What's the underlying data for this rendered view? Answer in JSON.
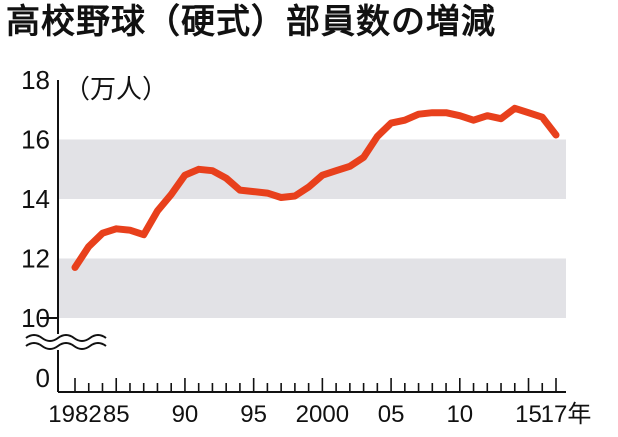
{
  "chart_data": {
    "type": "line",
    "title": "高校野球（硬式）部員数の増減",
    "y_unit_label": "（万人）",
    "x_unit_suffix": "年",
    "ylim": [
      10,
      18
    ],
    "y_ticks": [
      {
        "value": 18,
        "label": "18"
      },
      {
        "value": 16,
        "label": "16"
      },
      {
        "value": 14,
        "label": "14"
      },
      {
        "value": 12,
        "label": "12"
      },
      {
        "value": 10,
        "label": "10"
      },
      {
        "value": 0,
        "label": "0"
      }
    ],
    "axis_break": true,
    "bands": [
      [
        10,
        12
      ],
      [
        14,
        16
      ]
    ],
    "x_tick_labels": [
      {
        "year": 1982,
        "label": "1982"
      },
      {
        "year": 1985,
        "label": "85"
      },
      {
        "year": 1990,
        "label": "90"
      },
      {
        "year": 1995,
        "label": "95"
      },
      {
        "year": 2000,
        "label": "2000"
      },
      {
        "year": 2005,
        "label": "05"
      },
      {
        "year": 2010,
        "label": "10"
      },
      {
        "year": 2015,
        "label": "15"
      },
      {
        "year": 2017,
        "label": "17"
      }
    ],
    "x": [
      1982,
      1983,
      1984,
      1985,
      1986,
      1987,
      1988,
      1989,
      1990,
      1991,
      1992,
      1993,
      1994,
      1995,
      1996,
      1997,
      1998,
      1999,
      2000,
      2001,
      2002,
      2003,
      2004,
      2005,
      2006,
      2007,
      2008,
      2009,
      2010,
      2011,
      2012,
      2013,
      2014,
      2015,
      2016,
      2017
    ],
    "series": [
      {
        "color": "#e8401c",
        "values": [
          11.7,
          12.4,
          12.85,
          13.0,
          12.95,
          12.8,
          13.6,
          14.15,
          14.8,
          15.0,
          14.95,
          14.7,
          14.3,
          14.25,
          14.2,
          14.05,
          14.1,
          14.4,
          14.8,
          14.95,
          15.1,
          15.4,
          16.1,
          16.55,
          16.65,
          16.85,
          16.9,
          16.9,
          16.8,
          16.65,
          16.8,
          16.7,
          17.05,
          16.9,
          16.75,
          16.15
        ]
      }
    ],
    "band_color": "#e2e2e6"
  }
}
